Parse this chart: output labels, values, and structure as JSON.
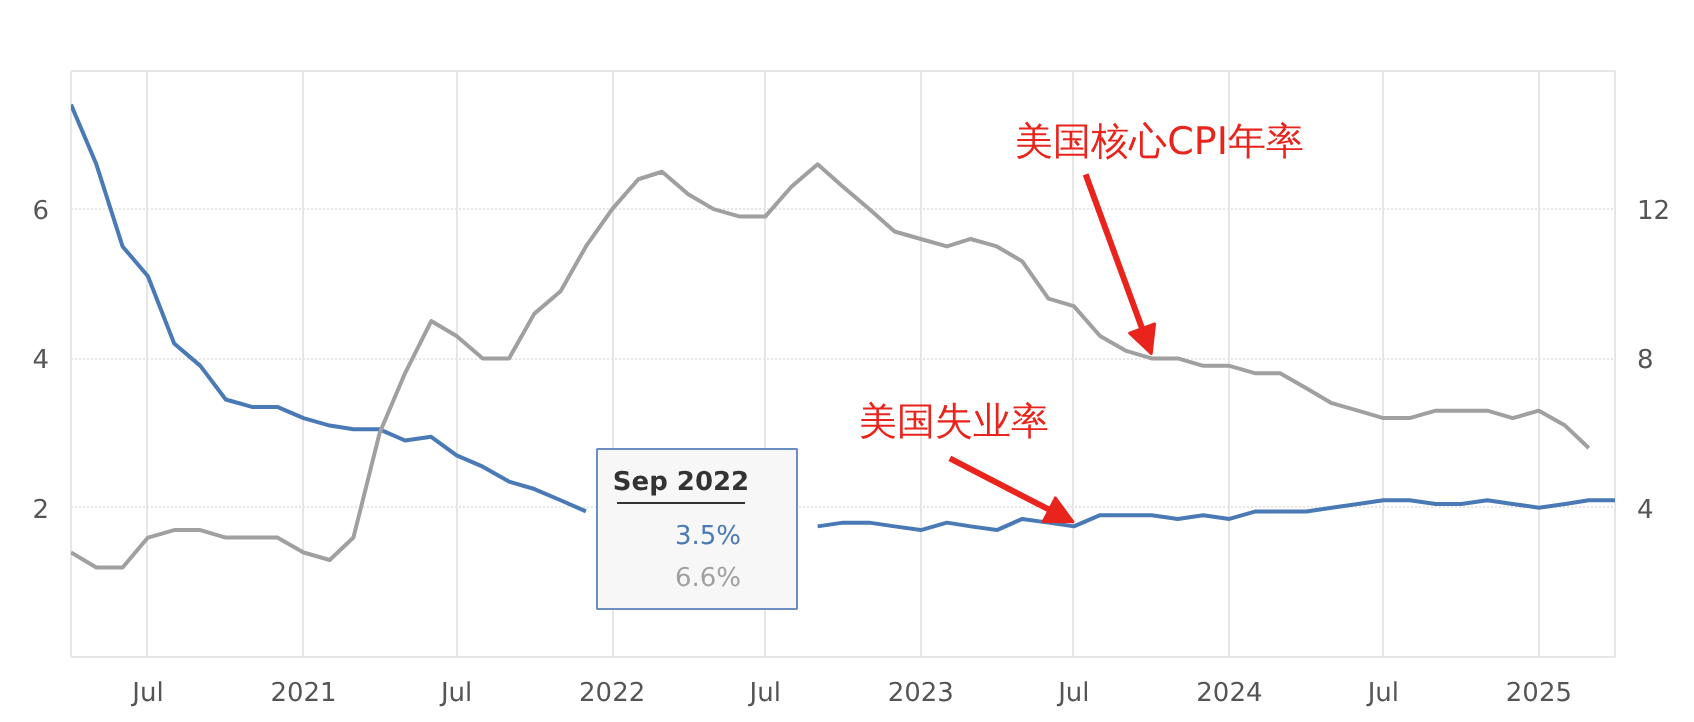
{
  "chart_data": {
    "type": "line",
    "x": [
      "2020-04",
      "2020-05",
      "2020-06",
      "2020-07",
      "2020-08",
      "2020-09",
      "2020-10",
      "2020-11",
      "2020-12",
      "2021-01",
      "2021-02",
      "2021-03",
      "2021-04",
      "2021-05",
      "2021-06",
      "2021-07",
      "2021-08",
      "2021-09",
      "2021-10",
      "2021-11",
      "2021-12",
      "2022-01",
      "2022-02",
      "2022-03",
      "2022-04",
      "2022-05",
      "2022-06",
      "2022-07",
      "2022-08",
      "2022-09",
      "2022-10",
      "2022-11",
      "2022-12",
      "2023-01",
      "2023-02",
      "2023-03",
      "2023-04",
      "2023-05",
      "2023-06",
      "2023-07",
      "2023-08",
      "2023-09",
      "2023-10",
      "2023-11",
      "2023-12",
      "2024-01",
      "2024-02",
      "2024-03",
      "2024-04",
      "2024-05",
      "2024-06",
      "2024-07",
      "2024-08",
      "2024-09",
      "2024-10",
      "2024-11",
      "2024-12",
      "2025-01",
      "2025-02",
      "2025-03",
      "2025-04"
    ],
    "series": [
      {
        "color": "#4a7ab5",
        "axis": "y2",
        "values": [
          14.8,
          13.2,
          11.0,
          10.2,
          8.4,
          7.8,
          6.9,
          6.7,
          6.7,
          6.4,
          6.2,
          6.1,
          6.1,
          5.8,
          5.9,
          5.4,
          5.1,
          4.7,
          4.5,
          4.2,
          3.9,
          null,
          null,
          null,
          null,
          null,
          null,
          null,
          null,
          3.5,
          3.6,
          3.6,
          3.5,
          3.4,
          3.6,
          3.5,
          3.4,
          3.7,
          3.6,
          3.5,
          3.8,
          3.8,
          3.8,
          3.7,
          3.8,
          3.7,
          3.9,
          3.9,
          3.9,
          4.0,
          4.1,
          4.2,
          4.2,
          4.1,
          4.1,
          4.2,
          4.1,
          4.0,
          4.1,
          4.2,
          4.2
        ]
      },
      {
        "color": "#a0a0a0",
        "values": [
          1.4,
          1.2,
          1.2,
          1.6,
          1.7,
          1.7,
          1.6,
          1.6,
          1.6,
          1.4,
          1.3,
          1.6,
          3.0,
          3.8,
          4.5,
          4.3,
          4.0,
          4.0,
          4.6,
          4.9,
          5.5,
          6.0,
          6.4,
          6.5,
          6.2,
          6.0,
          5.9,
          5.9,
          6.3,
          6.6,
          6.3,
          6.0,
          5.7,
          5.6,
          5.5,
          5.6,
          5.5,
          5.3,
          4.8,
          4.7,
          4.3,
          4.1,
          4.0,
          4.0,
          3.9,
          3.9,
          3.8,
          3.8,
          3.6,
          3.4,
          3.3,
          3.2,
          3.2,
          3.3,
          3.3,
          3.3,
          3.2,
          3.3,
          3.1,
          2.8,
          null
        ]
      }
    ],
    "xlim": [
      "2020-04",
      "2025-04"
    ],
    "xticks": [
      {
        "value": "2020-07",
        "label": "Jul"
      },
      {
        "value": "2021-01",
        "label": "2021"
      },
      {
        "value": "2021-07",
        "label": "Jul"
      },
      {
        "value": "2022-01",
        "label": "2022"
      },
      {
        "value": "2022-07",
        "label": "Jul"
      },
      {
        "value": "2023-01",
        "label": "2023"
      },
      {
        "value": "2023-07",
        "label": "Jul"
      },
      {
        "value": "2024-01",
        "label": "2024"
      },
      {
        "value": "2024-07",
        "label": "Jul"
      },
      {
        "value": "2025-01",
        "label": "2025"
      }
    ],
    "ylim": [
      0,
      7.85
    ],
    "yticks": [
      2,
      4,
      6
    ],
    "y2lim": [
      0,
      15.7
    ],
    "y2ticks": [
      4,
      8,
      12
    ],
    "grid": true,
    "marker": "none",
    "line_style": "solid",
    "annotations": [
      {
        "text": "美国核心CPI年率",
        "x": "2023-10",
        "y": 4.0
      },
      {
        "text": "美国失业率",
        "x": "2023-07",
        "y": 1.75
      },
      "Sep 2022",
      "3.5%",
      "6.6%"
    ]
  }
}
